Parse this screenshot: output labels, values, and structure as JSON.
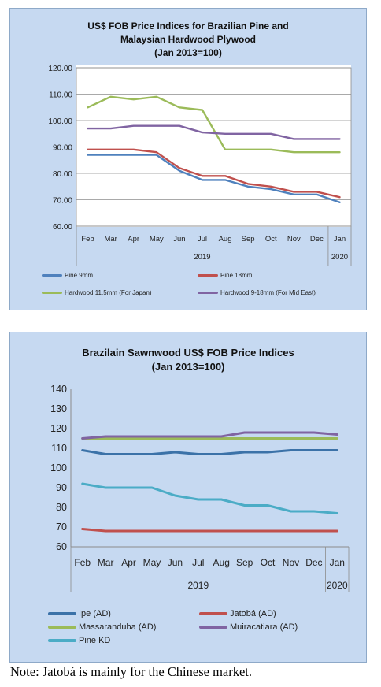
{
  "chart_data": [
    {
      "type": "line",
      "title_lines": [
        "US$ FOB Price Indices for Brazilian Pine and",
        "Malaysian Hardwood Plywood",
        "(Jan 2013=100)"
      ],
      "categories": [
        "Feb",
        "Mar",
        "Apr",
        "May",
        "Jun",
        "Jul",
        "Aug",
        "Sep",
        "Oct",
        "Nov",
        "Dec",
        "Jan"
      ],
      "year_labels": [
        "2019",
        "2020"
      ],
      "ylim": [
        60,
        120
      ],
      "yticks": [
        "60.00",
        "70.00",
        "80.00",
        "90.00",
        "100.00",
        "110.00",
        "120.00"
      ],
      "ytick_values": [
        60,
        70,
        80,
        90,
        100,
        110,
        120
      ],
      "grid": true,
      "legend_placement": "bottom",
      "series": [
        {
          "name": "Pine 9mm",
          "color": "#4f81bd",
          "values": [
            87,
            87,
            87,
            87,
            81,
            77.5,
            77.5,
            75,
            74,
            72,
            72,
            69
          ]
        },
        {
          "name": "Pine 18mm",
          "color": "#c0504d",
          "values": [
            89,
            89,
            89,
            88,
            82,
            79,
            79,
            76,
            75,
            73,
            73,
            71
          ]
        },
        {
          "name": "Hardwood 11.5mm (For Japan)",
          "color": "#9bbb59",
          "values": [
            105,
            109,
            108,
            109,
            105,
            104,
            89,
            89,
            89,
            88,
            88,
            88
          ]
        },
        {
          "name": "Hardwood 9-18mm (For Mid East)",
          "color": "#8064a2",
          "values": [
            97,
            97,
            98,
            98,
            98,
            95.5,
            95,
            95,
            95,
            93,
            93,
            93
          ]
        }
      ]
    },
    {
      "type": "line",
      "title_lines": [
        "Brazilain Sawnwood US$ FOB Price Indices",
        "(Jan 2013=100)"
      ],
      "categories": [
        "Feb",
        "Mar",
        "Apr",
        "May",
        "Jun",
        "Jul",
        "Aug",
        "Sep",
        "Oct",
        "Nov",
        "Dec",
        "Jan"
      ],
      "year_labels": [
        "2019",
        "2020"
      ],
      "ylim": [
        60,
        140
      ],
      "yticks": [
        "60",
        "70",
        "80",
        "90",
        "100",
        "110",
        "120",
        "130",
        "140"
      ],
      "ytick_values": [
        60,
        70,
        80,
        90,
        100,
        110,
        120,
        130,
        140
      ],
      "grid": false,
      "legend_placement": "bottom",
      "series": [
        {
          "name": "Ipe (AD)",
          "color": "#3b72a8",
          "values": [
            109,
            107,
            107,
            107,
            108,
            107,
            107,
            108,
            108,
            109,
            109,
            109
          ]
        },
        {
          "name": "Jatobá (AD)",
          "color": "#c0504d",
          "values": [
            69,
            68,
            68,
            68,
            68,
            68,
            68,
            68,
            68,
            68,
            68,
            68
          ]
        },
        {
          "name": "Massaranduba (AD)",
          "color": "#9bbb59",
          "values": [
            115,
            115,
            115,
            115,
            115,
            115,
            115,
            115,
            115,
            115,
            115,
            115
          ]
        },
        {
          "name": "Muiracatiara (AD)",
          "color": "#8064a2",
          "values": [
            115,
            116,
            116,
            116,
            116,
            116,
            116,
            118,
            118,
            118,
            118,
            117
          ]
        },
        {
          "name": "Pine KD",
          "color": "#4bacc6",
          "values": [
            92,
            90,
            90,
            90,
            86,
            84,
            84,
            81,
            81,
            78,
            78,
            77
          ]
        }
      ]
    }
  ],
  "note": "Note: Jatobá is mainly for the Chinese market."
}
